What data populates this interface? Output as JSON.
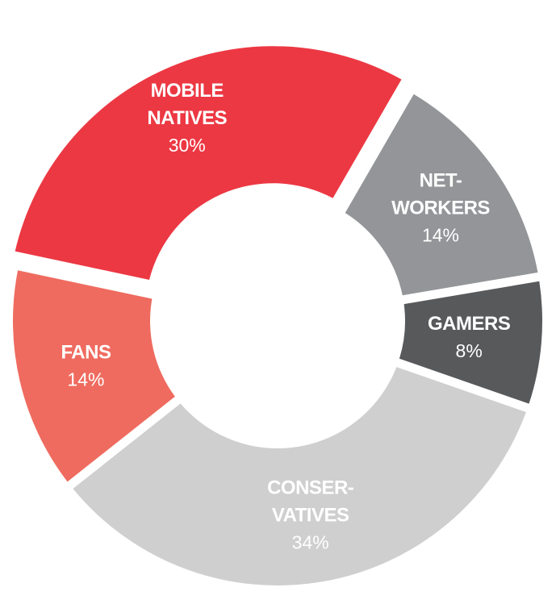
{
  "chart_data": {
    "type": "pie",
    "donut": true,
    "slices": [
      {
        "label_lines": [
          "MOBILE",
          "NATIVES"
        ],
        "value": 30,
        "value_label": "30%",
        "color": "#ec3843"
      },
      {
        "label_lines": [
          "NET-",
          "WORKERS"
        ],
        "value": 14,
        "value_label": "14%",
        "color": "#939598"
      },
      {
        "label_lines": [
          "GAMERS"
        ],
        "value": 8,
        "value_label": "8%",
        "color": "#58595b"
      },
      {
        "label_lines": [
          "CONSER-",
          "VATIVES"
        ],
        "value": 34,
        "value_label": "34%",
        "color": "#cfcfd0"
      },
      {
        "label_lines": [
          "FANS"
        ],
        "value": 14,
        "value_label": "14%",
        "color": "#ef6b5f"
      }
    ]
  }
}
